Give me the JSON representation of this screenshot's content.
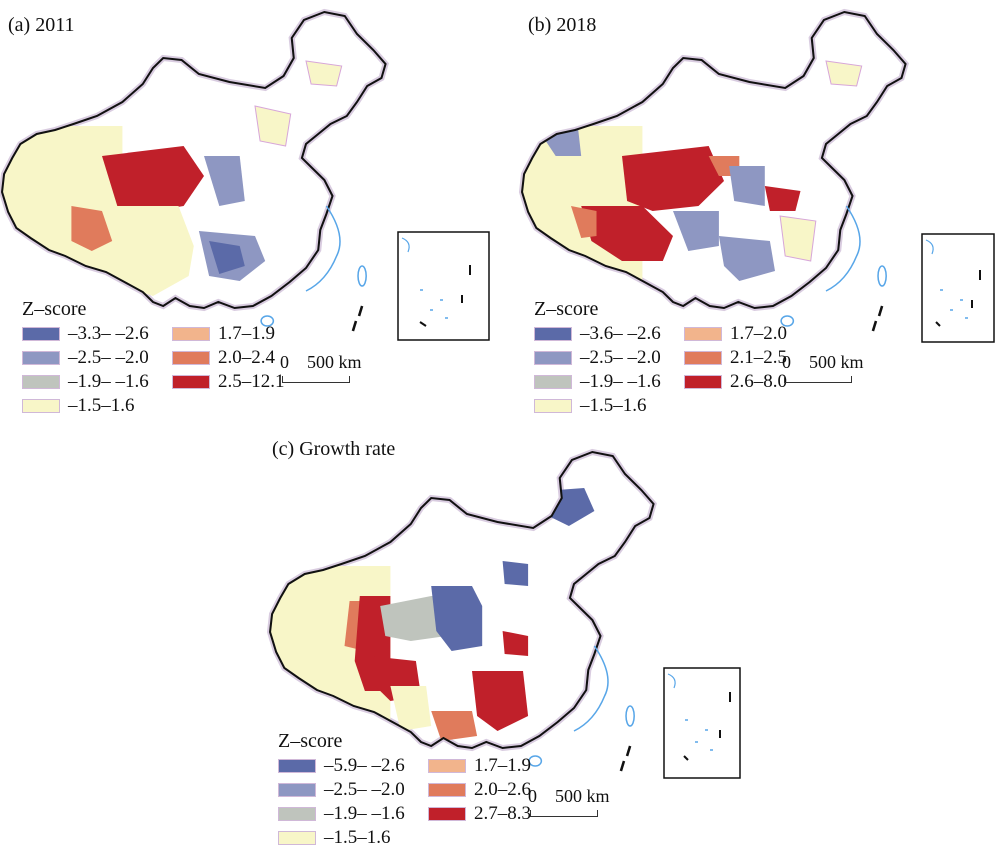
{
  "legend_colors": {
    "c1": "#5b6aa8",
    "c2": "#8e97c2",
    "c3": "#bfc4bd",
    "c4": "#f8f6c8",
    "c5": "#f2b48c",
    "c6": "#e07b5c",
    "c7": "#c0202a"
  },
  "boundary_color": "#111111",
  "river_color": "#58a6e8",
  "county_border_color": "#d7a6d9",
  "panels": [
    {
      "label": "(a) 2011",
      "legend_title": "Z–score",
      "legend": [
        {
          "range": "–3.3– –2.6",
          "color": "#5b6aa8"
        },
        {
          "range": "1.7–1.9",
          "color": "#f2b48c"
        },
        {
          "range": "–2.5– –2.0",
          "color": "#8e97c2"
        },
        {
          "range": "2.0–2.4",
          "color": "#e07b5c"
        },
        {
          "range": "–1.9– –1.6",
          "color": "#bfc4bd"
        },
        {
          "range": "2.5–12.1",
          "color": "#c0202a"
        },
        {
          "range": "–1.5–1.6",
          "color": "#f8f6c8"
        }
      ],
      "scale": "0    500 km"
    },
    {
      "label": "(b) 2018",
      "legend_title": "Z–score",
      "legend": [
        {
          "range": "–3.6– –2.6",
          "color": "#5b6aa8"
        },
        {
          "range": "1.7–2.0",
          "color": "#f2b48c"
        },
        {
          "range": "–2.5– –2.0",
          "color": "#8e97c2"
        },
        {
          "range": "2.1–2.5",
          "color": "#e07b5c"
        },
        {
          "range": "–1.9– –1.6",
          "color": "#bfc4bd"
        },
        {
          "range": "2.6–8.0",
          "color": "#c0202a"
        },
        {
          "range": "–1.5–1.6",
          "color": "#f8f6c8"
        }
      ],
      "scale": "0    500 km"
    },
    {
      "label": "(c) Growth rate",
      "legend_title": "Z–score",
      "legend": [
        {
          "range": "–5.9– –2.6",
          "color": "#5b6aa8"
        },
        {
          "range": "1.7–1.9",
          "color": "#f2b48c"
        },
        {
          "range": "–2.5– –2.0",
          "color": "#8e97c2"
        },
        {
          "range": "2.0–2.6",
          "color": "#e07b5c"
        },
        {
          "range": "–1.9– –1.6",
          "color": "#bfc4bd"
        },
        {
          "range": "2.7–8.3",
          "color": "#c0202a"
        },
        {
          "range": "–1.5–1.6",
          "color": "#f8f6c8"
        }
      ],
      "scale": "0    500 km"
    }
  ]
}
